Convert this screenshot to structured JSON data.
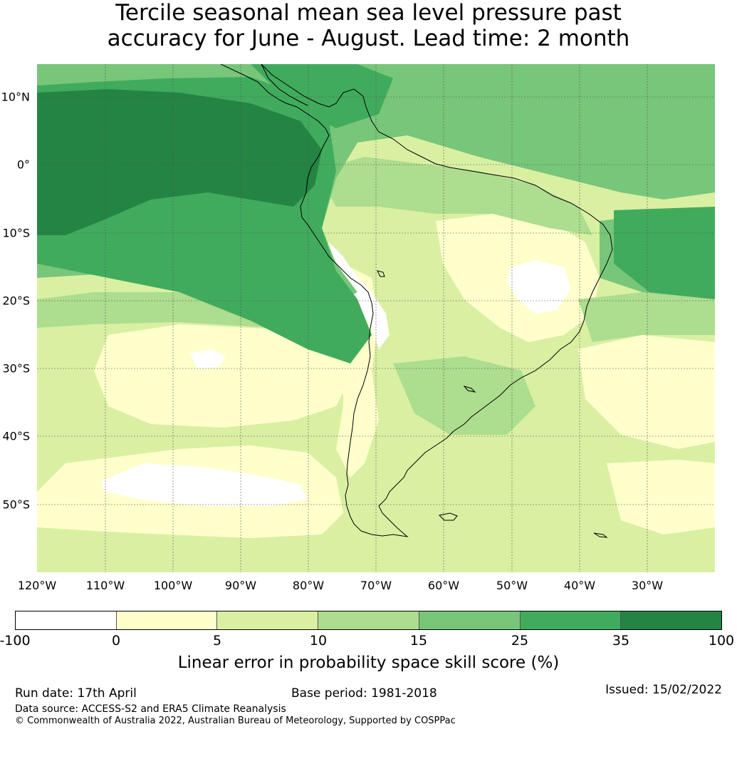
{
  "title": {
    "line1": "Tercile seasonal mean sea level pressure past",
    "line2": "accuracy for June - August. Lead time: 2 month"
  },
  "map": {
    "lat_labels": [
      "10°N",
      "0°",
      "10°S",
      "20°S",
      "30°S",
      "40°S",
      "50°S"
    ],
    "lon_labels": [
      "120°W",
      "110°W",
      "100°W",
      "90°W",
      "80°W",
      "70°W",
      "60°W",
      "50°W",
      "40°W",
      "30°W"
    ],
    "colors": {
      "c0": "#ffffff",
      "c1": "#ffffcc",
      "c2": "#d9f0a3",
      "c3": "#addd8e",
      "c4": "#78c679",
      "c5": "#41ab5d",
      "c6": "#238443"
    }
  },
  "colorbar": {
    "ticks": [
      "-100",
      "0",
      "5",
      "10",
      "15",
      "25",
      "35",
      "100"
    ],
    "label": "Linear error in probability space skill score (%)"
  },
  "footer": {
    "run_date": "Run date: 17th April",
    "base_period": "Base period: 1981-2018",
    "issued": "Issued: 15/02/2022",
    "data_source": "Data source: ACCESS-S2 and ERA5 Climate Reanalysis",
    "copyright": "© Commonwealth of Australia 2022, Australian Bureau of Meteorology, Supported by COSPPac"
  }
}
